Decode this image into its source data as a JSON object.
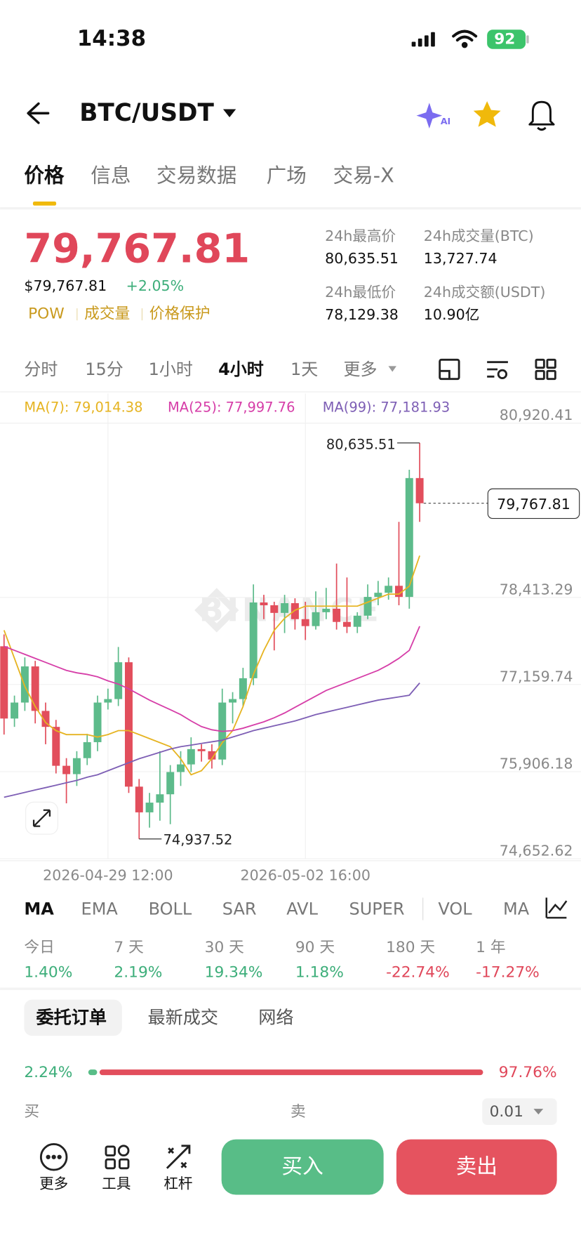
{
  "status_bar": {
    "time": "14:38",
    "battery": "92"
  },
  "header": {
    "pair": "BTC/USDT"
  },
  "tabs": [
    "价格",
    "信息",
    "交易数据",
    "广场",
    "交易-X"
  ],
  "price": {
    "last": "79,767.81",
    "usd": "$79,767.81",
    "change": "+2.05%",
    "tags": [
      "POW",
      "成交量",
      "价格保护"
    ]
  },
  "stats": [
    {
      "label": "24h最高价",
      "value": "80,635.51"
    },
    {
      "label": "24h成交量(BTC)",
      "value": "13,727.74"
    },
    {
      "label": "24h最低价",
      "value": "78,129.38"
    },
    {
      "label": "24h成交额(USDT)",
      "value": "10.90亿"
    }
  ],
  "intervals": [
    "分时",
    "15分",
    "1小时",
    "4小时",
    "1天",
    "更多"
  ],
  "chart_data": {
    "type": "candlestick",
    "watermark": "BINANCE",
    "categories": [
      null,
      null,
      null,
      null,
      null,
      null,
      null,
      null,
      null,
      null,
      "2026-04-29 12:00",
      null,
      null,
      null,
      null,
      null,
      null,
      null,
      null,
      null,
      null,
      null,
      null,
      null,
      null,
      null,
      null,
      null,
      null,
      "2026-05-02 16:00",
      null,
      null,
      null,
      null,
      null,
      null,
      null,
      null,
      null,
      null,
      null
    ],
    "ohlc": {
      "open": [
        77710,
        76670,
        76900,
        77420,
        76780,
        76550,
        75990,
        75870,
        76100,
        76330,
        76900,
        76950,
        77480,
        75690,
        75320,
        75460,
        75580,
        75900,
        76010,
        76230,
        76200,
        76080,
        76900,
        76950,
        77250,
        78340,
        78300,
        78190,
        78330,
        78100,
        78000,
        78200,
        78250,
        78060,
        77990,
        78150,
        78420,
        78480,
        78580,
        78420,
        80130
      ],
      "high": [
        77880,
        77000,
        77550,
        77500,
        76900,
        76650,
        76100,
        76200,
        76450,
        77000,
        77100,
        77700,
        77550,
        75800,
        75600,
        76200,
        76000,
        76200,
        76400,
        76300,
        76300,
        77100,
        77050,
        77400,
        78600,
        78450,
        78350,
        78450,
        78400,
        78350,
        78500,
        78550,
        78900,
        78700,
        78200,
        78600,
        78650,
        78700,
        79500,
        80250,
        80635.51
      ],
      "low": [
        76440,
        76550,
        76780,
        76600,
        76300,
        75880,
        75450,
        75700,
        76000,
        76200,
        76800,
        76850,
        75600,
        74937.52,
        75100,
        75200,
        75150,
        75700,
        75900,
        76050,
        75950,
        76000,
        76600,
        76850,
        77150,
        78100,
        77650,
        77900,
        77950,
        77800,
        77950,
        78100,
        77950,
        77900,
        77900,
        78100,
        78300,
        78380,
        78300,
        78250,
        79500
      ],
      "close": [
        76670,
        76900,
        77420,
        76780,
        76550,
        75990,
        75870,
        76100,
        76330,
        76900,
        76950,
        77480,
        75690,
        75320,
        75460,
        75580,
        75900,
        76010,
        76230,
        76200,
        76080,
        76900,
        76950,
        77250,
        78340,
        78300,
        78190,
        78330,
        78100,
        78000,
        78200,
        78250,
        78060,
        77990,
        78150,
        78420,
        78480,
        78580,
        78420,
        80130,
        79767.81
      ]
    },
    "up_color": "#5dbb8b",
    "down_color": "#e24e5c",
    "series": [
      {
        "name": "MA(7): 79,014.38",
        "color": "#e6b422",
        "values": [
          77940,
          77536,
          77132,
          76843,
          76612,
          76496,
          76439,
          76439,
          76439,
          76404,
          76439,
          76496,
          76496,
          76439,
          76381,
          76323,
          76265,
          76092,
          75861,
          75919,
          76092,
          76323,
          76496,
          76843,
          77305,
          77651,
          77940,
          78113,
          78229,
          78287,
          78287,
          78287,
          78287,
          78287,
          78287,
          78344,
          78402,
          78460,
          78460,
          78575,
          79014.38
        ]
      },
      {
        "name": "MA(25): 77,997.76",
        "color": "#d63ea8",
        "values": [
          77709,
          77651,
          77594,
          77536,
          77478,
          77420,
          77363,
          77328,
          77305,
          77270,
          77212,
          77166,
          77097,
          77016,
          76935,
          76866,
          76797,
          76727,
          76635,
          76554,
          76508,
          76485,
          76496,
          76531,
          76577,
          76623,
          76681,
          76750,
          76831,
          76912,
          76993,
          77074,
          77132,
          77189,
          77247,
          77305,
          77363,
          77443,
          77536,
          77651,
          77997.76
        ]
      },
      {
        "name": "MA(99): 77,181.93",
        "color": "#7e5fb5",
        "values": [
          75538,
          75572,
          75607,
          75642,
          75676,
          75711,
          75746,
          75780,
          75826,
          75861,
          75919,
          75977,
          76034,
          76092,
          76138,
          76184,
          76231,
          76265,
          76288,
          76312,
          76335,
          76358,
          76404,
          76450,
          76496,
          76531,
          76566,
          76600,
          76635,
          76681,
          76727,
          76762,
          76797,
          76831,
          76866,
          76901,
          76935,
          76958,
          76981,
          77005,
          77181.93
        ]
      }
    ],
    "ylim": [
      74652.62,
      80920.41
    ],
    "yticks": [
      {
        "value": 80920.41,
        "label": "80,920.41"
      },
      {
        "value": 78413.29,
        "label": "78,413.29"
      },
      {
        "value": 77159.74,
        "label": "77,159.74"
      },
      {
        "value": 75906.18,
        "label": "75,906.18"
      },
      {
        "value": 74652.62,
        "label": "74,652.62"
      }
    ],
    "grid": true,
    "high_label": {
      "value": 80635.51,
      "label": "80,635.51"
    },
    "low_label": {
      "value": 74937.52,
      "label": "74,937.52"
    },
    "current_price": {
      "value": 79767.81,
      "label": "79,767.81"
    }
  },
  "indicators": [
    "MA",
    "EMA",
    "BOLL",
    "SAR",
    "AVL",
    "SUPER",
    "VOL",
    "MA"
  ],
  "performance": [
    {
      "period": "今日",
      "change": "1.40%"
    },
    {
      "period": "7 天",
      "change": "2.19%"
    },
    {
      "period": "30 天",
      "change": "19.34%"
    },
    {
      "period": "90 天",
      "change": "1.18%"
    },
    {
      "period": "180 天",
      "change": "-22.74%"
    },
    {
      "period": "1 年",
      "change": "-17.27%"
    }
  ],
  "order_tabs": [
    "委托订单",
    "最新成交",
    "网络"
  ],
  "depth": {
    "buy": {
      "value": 2.24,
      "label": "2.24%"
    },
    "sell": {
      "value": 97.76,
      "label": "97.76%"
    },
    "buy_label": "买",
    "sell_label": "卖",
    "precision": "0.01"
  },
  "toolbar": [
    "更多",
    "工具",
    "杠杆"
  ],
  "actions": {
    "buy": "买入",
    "sell": "卖出"
  }
}
